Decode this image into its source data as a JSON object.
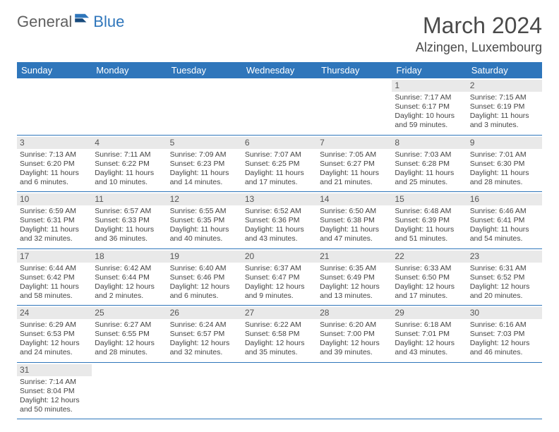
{
  "brand": {
    "textA": "General",
    "textB": "Blue"
  },
  "header": {
    "month": "March 2024",
    "location": "Alzingen, Luxembourg"
  },
  "dayNames": [
    "Sunday",
    "Monday",
    "Tuesday",
    "Wednesday",
    "Thursday",
    "Friday",
    "Saturday"
  ],
  "colors": {
    "headerBg": "#2f76bb",
    "headerText": "#ffffff",
    "dayNumBg": "#e9e9e9",
    "ruler": "#2f76bb",
    "logoGrey": "#5f5f5f",
    "logoBlue": "#2f76bb"
  },
  "calendar": {
    "startOffset": 5,
    "days": [
      {
        "n": 1,
        "sunrise": "7:17 AM",
        "sunset": "6:17 PM",
        "daylight": "10 hours and 59 minutes."
      },
      {
        "n": 2,
        "sunrise": "7:15 AM",
        "sunset": "6:19 PM",
        "daylight": "11 hours and 3 minutes."
      },
      {
        "n": 3,
        "sunrise": "7:13 AM",
        "sunset": "6:20 PM",
        "daylight": "11 hours and 6 minutes."
      },
      {
        "n": 4,
        "sunrise": "7:11 AM",
        "sunset": "6:22 PM",
        "daylight": "11 hours and 10 minutes."
      },
      {
        "n": 5,
        "sunrise": "7:09 AM",
        "sunset": "6:23 PM",
        "daylight": "11 hours and 14 minutes."
      },
      {
        "n": 6,
        "sunrise": "7:07 AM",
        "sunset": "6:25 PM",
        "daylight": "11 hours and 17 minutes."
      },
      {
        "n": 7,
        "sunrise": "7:05 AM",
        "sunset": "6:27 PM",
        "daylight": "11 hours and 21 minutes."
      },
      {
        "n": 8,
        "sunrise": "7:03 AM",
        "sunset": "6:28 PM",
        "daylight": "11 hours and 25 minutes."
      },
      {
        "n": 9,
        "sunrise": "7:01 AM",
        "sunset": "6:30 PM",
        "daylight": "11 hours and 28 minutes."
      },
      {
        "n": 10,
        "sunrise": "6:59 AM",
        "sunset": "6:31 PM",
        "daylight": "11 hours and 32 minutes."
      },
      {
        "n": 11,
        "sunrise": "6:57 AM",
        "sunset": "6:33 PM",
        "daylight": "11 hours and 36 minutes."
      },
      {
        "n": 12,
        "sunrise": "6:55 AM",
        "sunset": "6:35 PM",
        "daylight": "11 hours and 40 minutes."
      },
      {
        "n": 13,
        "sunrise": "6:52 AM",
        "sunset": "6:36 PM",
        "daylight": "11 hours and 43 minutes."
      },
      {
        "n": 14,
        "sunrise": "6:50 AM",
        "sunset": "6:38 PM",
        "daylight": "11 hours and 47 minutes."
      },
      {
        "n": 15,
        "sunrise": "6:48 AM",
        "sunset": "6:39 PM",
        "daylight": "11 hours and 51 minutes."
      },
      {
        "n": 16,
        "sunrise": "6:46 AM",
        "sunset": "6:41 PM",
        "daylight": "11 hours and 54 minutes."
      },
      {
        "n": 17,
        "sunrise": "6:44 AM",
        "sunset": "6:42 PM",
        "daylight": "11 hours and 58 minutes."
      },
      {
        "n": 18,
        "sunrise": "6:42 AM",
        "sunset": "6:44 PM",
        "daylight": "12 hours and 2 minutes."
      },
      {
        "n": 19,
        "sunrise": "6:40 AM",
        "sunset": "6:46 PM",
        "daylight": "12 hours and 6 minutes."
      },
      {
        "n": 20,
        "sunrise": "6:37 AM",
        "sunset": "6:47 PM",
        "daylight": "12 hours and 9 minutes."
      },
      {
        "n": 21,
        "sunrise": "6:35 AM",
        "sunset": "6:49 PM",
        "daylight": "12 hours and 13 minutes."
      },
      {
        "n": 22,
        "sunrise": "6:33 AM",
        "sunset": "6:50 PM",
        "daylight": "12 hours and 17 minutes."
      },
      {
        "n": 23,
        "sunrise": "6:31 AM",
        "sunset": "6:52 PM",
        "daylight": "12 hours and 20 minutes."
      },
      {
        "n": 24,
        "sunrise": "6:29 AM",
        "sunset": "6:53 PM",
        "daylight": "12 hours and 24 minutes."
      },
      {
        "n": 25,
        "sunrise": "6:27 AM",
        "sunset": "6:55 PM",
        "daylight": "12 hours and 28 minutes."
      },
      {
        "n": 26,
        "sunrise": "6:24 AM",
        "sunset": "6:57 PM",
        "daylight": "12 hours and 32 minutes."
      },
      {
        "n": 27,
        "sunrise": "6:22 AM",
        "sunset": "6:58 PM",
        "daylight": "12 hours and 35 minutes."
      },
      {
        "n": 28,
        "sunrise": "6:20 AM",
        "sunset": "7:00 PM",
        "daylight": "12 hours and 39 minutes."
      },
      {
        "n": 29,
        "sunrise": "6:18 AM",
        "sunset": "7:01 PM",
        "daylight": "12 hours and 43 minutes."
      },
      {
        "n": 30,
        "sunrise": "6:16 AM",
        "sunset": "7:03 PM",
        "daylight": "12 hours and 46 minutes."
      },
      {
        "n": 31,
        "sunrise": "7:14 AM",
        "sunset": "8:04 PM",
        "daylight": "12 hours and 50 minutes."
      }
    ]
  },
  "labels": {
    "sunrisePrefix": "Sunrise: ",
    "sunsetPrefix": "Sunset: ",
    "daylightPrefix": "Daylight: "
  }
}
